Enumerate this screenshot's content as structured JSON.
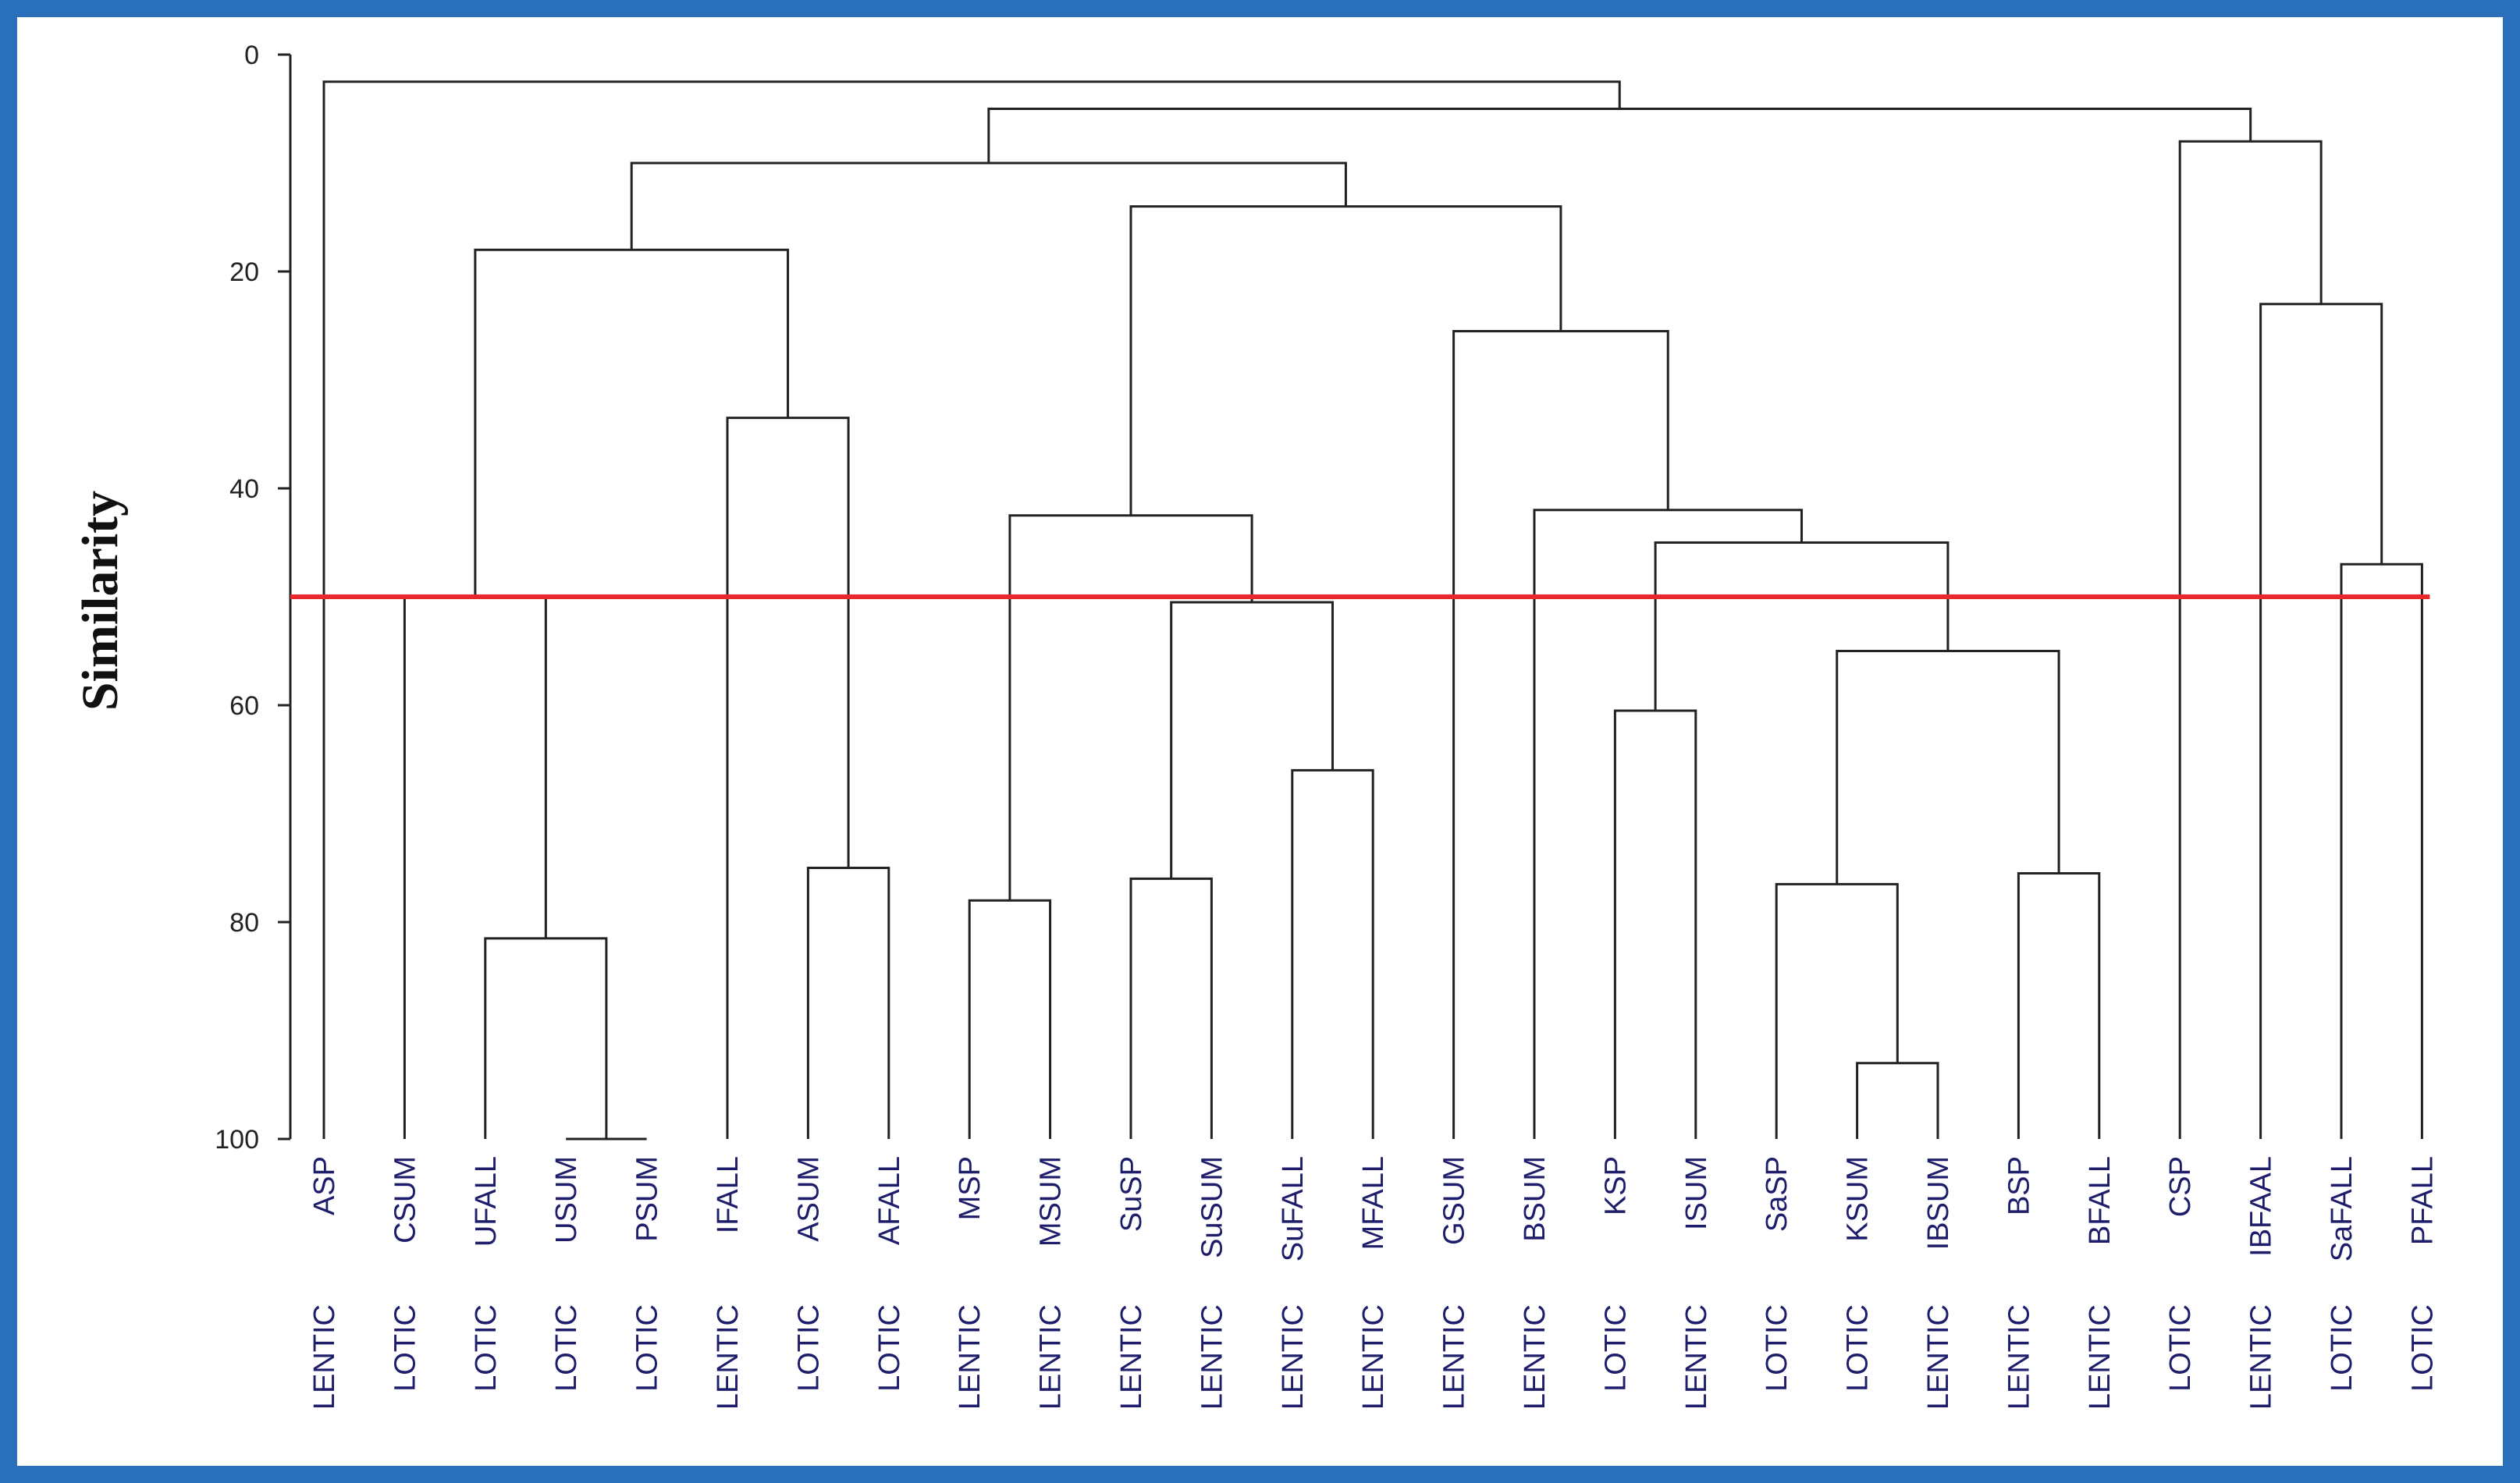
{
  "chart_data": {
    "type": "dendrogram",
    "title": "",
    "ylabel": "Similarity",
    "xlabel": "",
    "ylim": [
      0,
      100
    ],
    "y_ticks": [
      0,
      20,
      40,
      60,
      80,
      100
    ],
    "threshold": {
      "value": 50,
      "color": "#e8282c"
    },
    "line_color": "#222222",
    "border_color": "#2a6fb9",
    "leaves": [
      {
        "label": "ASP",
        "group": "LENTIC"
      },
      {
        "label": "CSUM",
        "group": "LOTIC"
      },
      {
        "label": "UFALL",
        "group": "LOTIC"
      },
      {
        "label": "USUM",
        "group": "LOTIC"
      },
      {
        "label": "PSUM",
        "group": "LOTIC"
      },
      {
        "label": "IFALL",
        "group": "LENTIC"
      },
      {
        "label": "ASUM",
        "group": "LOTIC"
      },
      {
        "label": "AFALL",
        "group": "LOTIC"
      },
      {
        "label": "MSP",
        "group": "LENTIC"
      },
      {
        "label": "MSUM",
        "group": "LENTIC"
      },
      {
        "label": "SuSP",
        "group": "LENTIC"
      },
      {
        "label": "SuSUM",
        "group": "LENTIC"
      },
      {
        "label": "SuFALL",
        "group": "LENTIC"
      },
      {
        "label": "MFALL",
        "group": "LENTIC"
      },
      {
        "label": "GSUM",
        "group": "LENTIC"
      },
      {
        "label": "BSUM",
        "group": "LENTIC"
      },
      {
        "label": "KSP",
        "group": "LOTIC"
      },
      {
        "label": "ISUM",
        "group": "LENTIC"
      },
      {
        "label": "SaSP",
        "group": "LOTIC"
      },
      {
        "label": "KSUM",
        "group": "LOTIC"
      },
      {
        "label": "IBSUM",
        "group": "LENTIC"
      },
      {
        "label": "BSP",
        "group": "LENTIC"
      },
      {
        "label": "BFALL",
        "group": "LENTIC"
      },
      {
        "label": "CSP",
        "group": "LOTIC"
      },
      {
        "label": "IBFAAL",
        "group": "LENTIC"
      },
      {
        "label": "SaFALL",
        "group": "LOTIC"
      },
      {
        "label": "PFALL",
        "group": "LOTIC"
      }
    ],
    "merges": [
      {
        "id": "m1",
        "left": "USUM",
        "right": "PSUM",
        "similarity": 100
      },
      {
        "id": "m2",
        "left": "KSUM",
        "right": "IBSUM",
        "similarity": 93
      },
      {
        "id": "m3",
        "left": "UFALL",
        "right": "m1",
        "similarity": 81.5
      },
      {
        "id": "m4",
        "left": "MSP",
        "right": "MSUM",
        "similarity": 78
      },
      {
        "id": "m5",
        "left": "SaSP",
        "right": "m2",
        "similarity": 76.5
      },
      {
        "id": "m6",
        "left": "SuSP",
        "right": "SuSUM",
        "similarity": 76
      },
      {
        "id": "m7",
        "left": "BSP",
        "right": "BFALL",
        "similarity": 75.5
      },
      {
        "id": "m8",
        "left": "ASUM",
        "right": "AFALL",
        "similarity": 75
      },
      {
        "id": "m9",
        "left": "SuFALL",
        "right": "MFALL",
        "similarity": 66
      },
      {
        "id": "m10",
        "left": "KSP",
        "right": "ISUM",
        "similarity": 60.5
      },
      {
        "id": "m11",
        "left": "m5",
        "right": "m7",
        "similarity": 55
      },
      {
        "id": "m12",
        "left": "m6",
        "right": "m9",
        "similarity": 50.5
      },
      {
        "id": "m13",
        "left": "CSUM",
        "right": "m3",
        "similarity": 50
      },
      {
        "id": "m14",
        "left": "SaFALL",
        "right": "PFALL",
        "similarity": 47
      },
      {
        "id": "m15",
        "left": "m10",
        "right": "m11",
        "similarity": 45
      },
      {
        "id": "m16",
        "left": "m4",
        "right": "m12",
        "similarity": 42.5
      },
      {
        "id": "m17",
        "left": "BSUM",
        "right": "m15",
        "similarity": 42
      },
      {
        "id": "m18",
        "left": "IFALL",
        "right": "m8",
        "similarity": 33.5
      },
      {
        "id": "m19",
        "left": "GSUM",
        "right": "m17",
        "similarity": 25.5
      },
      {
        "id": "m20",
        "left": "IBFAAL",
        "right": "m14",
        "similarity": 23
      },
      {
        "id": "m21",
        "left": "m13",
        "right": "m18",
        "similarity": 18
      },
      {
        "id": "m22",
        "left": "m16",
        "right": "m19",
        "similarity": 14
      },
      {
        "id": "m23",
        "left": "m21",
        "right": "m22",
        "similarity": 10
      },
      {
        "id": "m24",
        "left": "CSP",
        "right": "m20",
        "similarity": 8
      },
      {
        "id": "m25",
        "left": "m23",
        "right": "m24",
        "similarity": 5
      },
      {
        "id": "m26",
        "left": "ASP",
        "right": "m25",
        "similarity": 2.5
      }
    ]
  }
}
